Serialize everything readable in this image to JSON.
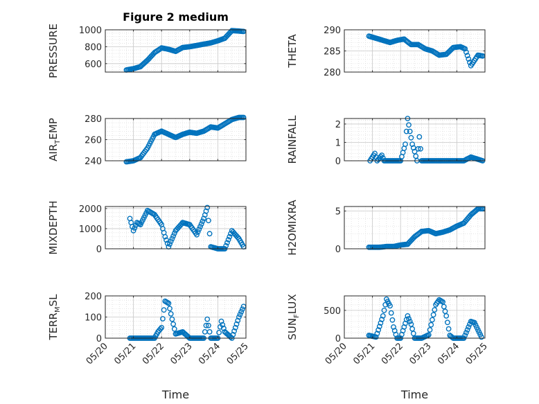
{
  "chart_data": [
    {
      "type": "scatter",
      "title": "Figure 2 medium",
      "ylabel": "PRESSURE",
      "ylabel_sub": "",
      "ylabel_tail": "",
      "ylim": [
        500,
        1000
      ],
      "yticks": [
        600,
        800,
        1000
      ],
      "xlim": [
        "05/20",
        "05/25"
      ],
      "xticks": [
        "05/20",
        "05/21",
        "05/22",
        "05/23",
        "05/24",
        "05/25"
      ],
      "show_xticklabels": false,
      "xlabel": "",
      "grid": true,
      "x": [
        "05/20 18:00",
        "05/21 00:00",
        "05/21 06:00",
        "05/21 12:00",
        "05/21 18:00",
        "05/22 00:00",
        "05/22 06:00",
        "05/22 12:00",
        "05/22 18:00",
        "05/23 00:00",
        "05/23 06:00",
        "05/23 12:00",
        "05/23 18:00",
        "05/24 00:00",
        "05/24 06:00",
        "05/24 12:00",
        "05/24 18:00",
        "05/24 22:00"
      ],
      "y": [
        525,
        540,
        565,
        640,
        730,
        785,
        770,
        745,
        790,
        800,
        815,
        830,
        845,
        870,
        900,
        990,
        985,
        980
      ]
    },
    {
      "type": "scatter",
      "title": "",
      "ylabel": "THETA",
      "ylabel_sub": "",
      "ylabel_tail": "",
      "ylim": [
        280,
        290
      ],
      "yticks": [
        280,
        285,
        290
      ],
      "xlim": [
        "05/20",
        "05/25"
      ],
      "xticks": [
        "05/20",
        "05/21",
        "05/22",
        "05/23",
        "05/24",
        "05/25"
      ],
      "show_xticklabels": false,
      "xlabel": "",
      "grid": true,
      "x": [
        "05/20 21:00",
        "05/21 03:00",
        "05/21 09:00",
        "05/21 15:00",
        "05/21 21:00",
        "05/22 03:00",
        "05/22 09:00",
        "05/22 15:00",
        "05/22 21:00",
        "05/23 03:00",
        "05/23 09:00",
        "05/23 15:00",
        "05/23 21:00",
        "05/24 03:00",
        "05/24 07:00",
        "05/24 12:00",
        "05/24 18:00",
        "05/24 22:00"
      ],
      "y": [
        288.5,
        288,
        287.5,
        287,
        287.5,
        287.8,
        286.5,
        286.5,
        285.5,
        285,
        284,
        284.2,
        285.8,
        286,
        285.5,
        281.5,
        284,
        283.8
      ]
    },
    {
      "type": "scatter",
      "title": "",
      "ylabel": "AIR",
      "ylabel_sub": "T",
      "ylabel_tail": "EMP",
      "ylim": [
        240,
        280
      ],
      "yticks": [
        240,
        260,
        280
      ],
      "xlim": [
        "05/20",
        "05/25"
      ],
      "xticks": [
        "05/20",
        "05/21",
        "05/22",
        "05/23",
        "05/24",
        "05/25"
      ],
      "show_xticklabels": false,
      "xlabel": "",
      "grid": true,
      "x": [
        "05/20 18:00",
        "05/21 00:00",
        "05/21 06:00",
        "05/21 12:00",
        "05/21 18:00",
        "05/22 00:00",
        "05/22 06:00",
        "05/22 12:00",
        "05/22 18:00",
        "05/23 00:00",
        "05/23 06:00",
        "05/23 12:00",
        "05/23 18:00",
        "05/24 00:00",
        "05/24 06:00",
        "05/24 12:00",
        "05/24 18:00",
        "05/24 22:00"
      ],
      "y": [
        239,
        240,
        243,
        252,
        265,
        268,
        265,
        262,
        265,
        267,
        266,
        268,
        272,
        271,
        275,
        279,
        281,
        281
      ]
    },
    {
      "type": "scatter",
      "title": "",
      "ylabel": "RAINFALL",
      "ylabel_sub": "",
      "ylabel_tail": "",
      "ylim": [
        0,
        2.3
      ],
      "yticks": [
        0,
        1,
        2
      ],
      "xlim": [
        "05/20",
        "05/25"
      ],
      "xticks": [
        "05/20",
        "05/21",
        "05/22",
        "05/23",
        "05/24",
        "05/25"
      ],
      "show_xticklabels": false,
      "xlabel": "",
      "grid": true,
      "x": [
        "05/20 22:00",
        "05/21 02:00",
        "05/21 04:00",
        "05/21 08:00",
        "05/21 10:00",
        "05/21 16:00",
        "05/22 00:00",
        "05/22 04:00",
        "05/22 06:00",
        "05/22 08:00",
        "05/22 10:00",
        "05/22 12:00",
        "05/22 14:00",
        "05/22 16:00",
        "05/22 18:00",
        "05/23 06:00",
        "05/23 18:00",
        "05/24 06:00",
        "05/24 12:00",
        "05/24 22:00"
      ],
      "y": [
        0,
        0.4,
        0,
        0.3,
        0,
        0,
        0,
        0.9,
        2.3,
        1.6,
        0.9,
        0.5,
        0,
        1.3,
        0,
        0,
        0,
        0,
        0.2,
        0
      ]
    },
    {
      "type": "scatter",
      "title": "",
      "ylabel": "MIXDEPTH",
      "ylabel_sub": "",
      "ylabel_tail": "",
      "ylim": [
        0,
        2100
      ],
      "yticks": [
        0,
        1000,
        2000
      ],
      "xlim": [
        "05/20",
        "05/25"
      ],
      "xticks": [
        "05/20",
        "05/21",
        "05/22",
        "05/23",
        "05/24",
        "05/25"
      ],
      "show_xticklabels": false,
      "xlabel": "",
      "grid": true,
      "x": [
        "05/20 21:00",
        "05/21 00:00",
        "05/21 03:00",
        "05/21 06:00",
        "05/21 12:00",
        "05/21 18:00",
        "05/22 00:00",
        "05/22 03:00",
        "05/22 06:00",
        "05/22 12:00",
        "05/22 18:00",
        "05/23 00:00",
        "05/23 06:00",
        "05/23 12:00",
        "05/23 15:00",
        "05/23 18:00",
        "05/24 00:00",
        "05/24 06:00",
        "05/24 12:00",
        "05/24 18:00",
        "05/24 22:00"
      ],
      "y": [
        1500,
        900,
        1300,
        1200,
        1900,
        1700,
        1200,
        600,
        100,
        900,
        1300,
        1200,
        700,
        1500,
        2050,
        100,
        0,
        0,
        900,
        500,
        100
      ]
    },
    {
      "type": "scatter",
      "title": "",
      "ylabel": "H2OMIXRA",
      "ylabel_sub": "",
      "ylabel_tail": "",
      "ylim": [
        0,
        5.6
      ],
      "yticks": [
        0,
        5
      ],
      "xlim": [
        "05/20",
        "05/25"
      ],
      "xticks": [
        "05/20",
        "05/21",
        "05/22",
        "05/23",
        "05/24",
        "05/25"
      ],
      "show_xticklabels": false,
      "xlabel": "",
      "grid": true,
      "x": [
        "05/20 21:00",
        "05/21 06:00",
        "05/21 12:00",
        "05/21 18:00",
        "05/22 00:00",
        "05/22 06:00",
        "05/22 12:00",
        "05/22 18:00",
        "05/23 00:00",
        "05/23 06:00",
        "05/23 12:00",
        "05/23 18:00",
        "05/24 00:00",
        "05/24 06:00",
        "05/24 12:00",
        "05/24 18:00",
        "05/24 22:00"
      ],
      "y": [
        0.2,
        0.2,
        0.3,
        0.3,
        0.5,
        0.6,
        1.6,
        2.3,
        2.4,
        2,
        2.2,
        2.5,
        3,
        3.4,
        4.5,
        5.3,
        5.3
      ]
    },
    {
      "type": "scatter",
      "title": "",
      "ylabel": "TERR",
      "ylabel_sub": "M",
      "ylabel_tail": "SL",
      "ylim": [
        0,
        200
      ],
      "yticks": [
        0,
        100,
        200
      ],
      "xlim": [
        "05/20",
        "05/25"
      ],
      "xticks": [
        "05/20",
        "05/21",
        "05/22",
        "05/23",
        "05/24",
        "05/25"
      ],
      "show_xticklabels": true,
      "xlabel": "Time",
      "grid": true,
      "x": [
        "05/20 21:00",
        "05/21 06:00",
        "05/21 12:00",
        "05/21 18:00",
        "05/21 21:00",
        "05/22 00:00",
        "05/22 03:00",
        "05/22 06:00",
        "05/22 09:00",
        "05/22 12:00",
        "05/22 18:00",
        "05/23 00:00",
        "05/23 06:00",
        "05/23 12:00",
        "05/23 15:00",
        "05/23 18:00",
        "05/24 00:00",
        "05/24 03:00",
        "05/24 06:00",
        "05/24 12:00",
        "05/24 18:00",
        "05/24 22:00"
      ],
      "y": [
        0,
        0,
        0,
        0,
        30,
        50,
        175,
        165,
        90,
        20,
        30,
        0,
        0,
        0,
        90,
        0,
        0,
        80,
        30,
        0,
        100,
        150
      ]
    },
    {
      "type": "scatter",
      "title": "",
      "ylabel": "SUN",
      "ylabel_sub": "F",
      "ylabel_tail": "LUX",
      "ylim": [
        0,
        760
      ],
      "yticks": [
        0,
        500
      ],
      "xlim": [
        "05/20",
        "05/25"
      ],
      "xticks": [
        "05/20",
        "05/21",
        "05/22",
        "05/23",
        "05/24",
        "05/25"
      ],
      "show_xticklabels": true,
      "xlabel": "Time",
      "grid": true,
      "x": [
        "05/20 21:00",
        "05/21 03:00",
        "05/21 09:00",
        "05/21 12:00",
        "05/21 15:00",
        "05/21 18:00",
        "05/21 21:00",
        "05/22 00:00",
        "05/22 06:00",
        "05/22 09:00",
        "05/22 12:00",
        "05/22 15:00",
        "05/22 18:00",
        "05/23 00:00",
        "05/23 06:00",
        "05/23 09:00",
        "05/23 12:00",
        "05/23 15:00",
        "05/23 18:00",
        "05/23 21:00",
        "05/24 00:00",
        "05/24 06:00",
        "05/24 12:00",
        "05/24 15:00",
        "05/24 18:00",
        "05/24 21:00"
      ],
      "y": [
        50,
        20,
        400,
        700,
        580,
        200,
        0,
        0,
        400,
        250,
        0,
        0,
        0,
        60,
        600,
        690,
        650,
        400,
        50,
        0,
        0,
        0,
        300,
        280,
        150,
        20
      ]
    }
  ]
}
